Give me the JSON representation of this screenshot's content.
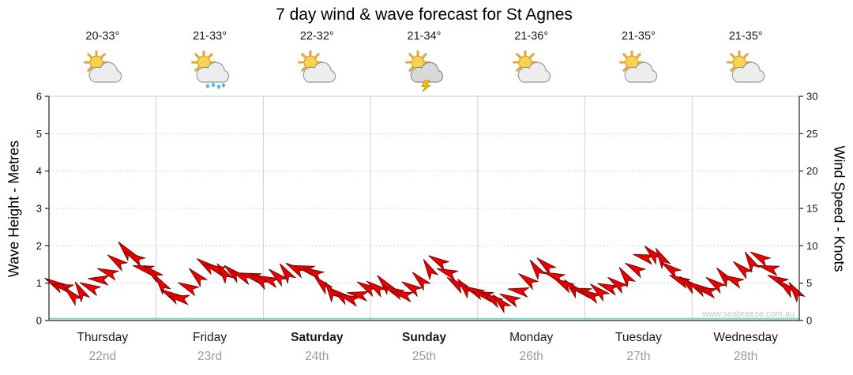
{
  "title": "7 day wind & wave forecast for St Agnes",
  "watermark": "www.seabreeze.com.au",
  "axes": {
    "left_label": "Wave Height - Metres",
    "right_label": "Wind Speed - Knots"
  },
  "days": [
    {
      "name": "Thursday",
      "date": "22nd",
      "temp": "20-33°",
      "icon": "sun-cloud",
      "bold": false
    },
    {
      "name": "Friday",
      "date": "23rd",
      "temp": "21-33°",
      "icon": "sun-cloud-rain",
      "bold": false
    },
    {
      "name": "Saturday",
      "date": "24th",
      "temp": "22-32°",
      "icon": "sun-cloud",
      "bold": true
    },
    {
      "name": "Sunday",
      "date": "25th",
      "temp": "21-34°",
      "icon": "storm",
      "bold": true
    },
    {
      "name": "Monday",
      "date": "26th",
      "temp": "21-36°",
      "icon": "sun-cloud",
      "bold": false
    },
    {
      "name": "Tuesday",
      "date": "27th",
      "temp": "21-35°",
      "icon": "sun-cloud",
      "bold": false
    },
    {
      "name": "Wednesday",
      "date": "28th",
      "temp": "21-35°",
      "icon": "sun-cloud",
      "bold": false
    }
  ],
  "chart_data": {
    "type": "line",
    "title": "7 day wind & wave forecast for St Agnes",
    "categories": [
      "Thursday 22nd",
      "Friday 23rd",
      "Saturday 24th",
      "Sunday 25th",
      "Monday 26th",
      "Tuesday 27th",
      "Wednesday 28th"
    ],
    "points_per_day": 12,
    "ylabel_left": "Wave Height - Metres",
    "ylabel_right": "Wind Speed - Knots",
    "ylim_left": [
      0,
      6
    ],
    "ylim_right": [
      0,
      30
    ],
    "yticks_left": [
      0,
      1,
      2,
      3,
      4,
      5,
      6
    ],
    "yticks_right": [
      0,
      5,
      10,
      15,
      20,
      25,
      30
    ],
    "grid": true,
    "legend": "none",
    "series": [
      {
        "name": "Wind Speed",
        "units": "knots",
        "color": "#e60000",
        "style": "wind-barbs",
        "values": [
          5,
          4.5,
          3.5,
          4,
          4.5,
          5.5,
          6.5,
          8,
          9.5,
          8.5,
          7,
          6.5,
          5,
          3.5,
          3,
          4.5,
          6,
          7.5,
          7,
          6.5,
          6.5,
          6,
          6,
          5.5,
          5.5,
          6,
          6.5,
          7,
          7,
          6.5,
          5,
          4,
          3.5,
          3,
          3.5,
          4.5,
          4.5,
          5,
          4,
          3.5,
          4.5,
          5.5,
          7,
          8,
          6.5,
          5,
          4.5,
          4,
          3.5,
          3,
          2.5,
          3,
          4,
          5.5,
          7,
          7.5,
          6,
          5,
          4.5,
          4,
          3.5,
          4,
          4.5,
          5,
          6,
          7,
          8.5,
          9,
          8.5,
          7,
          5.5,
          5,
          4.5,
          4,
          5,
          6,
          5.5,
          7,
          8,
          8.5,
          7,
          5.5,
          4.5,
          4
        ]
      },
      {
        "name": "Wind Direction",
        "units": "degrees",
        "values": [
          210,
          195,
          225,
          240,
          205,
          185,
          200,
          215,
          230,
          210,
          195,
          220,
          235,
          210,
          190,
          205,
          225,
          215,
          200,
          235,
          220,
          205,
          195,
          215,
          200,
          220,
          235,
          210,
          195,
          205,
          225,
          240,
          215,
          200,
          190,
          210,
          215,
          230,
          205,
          195,
          210,
          225,
          240,
          210,
          200,
          215,
          230,
          205,
          195,
          210,
          225,
          205,
          190,
          215,
          235,
          220,
          200,
          210,
          225,
          195,
          205,
          220,
          200,
          215,
          235,
          210,
          195,
          225,
          240,
          215,
          205,
          220,
          210,
          195,
          215,
          230,
          205,
          220,
          240,
          210,
          195,
          205,
          220,
          235
        ]
      },
      {
        "name": "Wave Height",
        "units": "metres",
        "color": "#82d8d8",
        "style": "flat-line",
        "constant_value": 0.05
      }
    ]
  }
}
